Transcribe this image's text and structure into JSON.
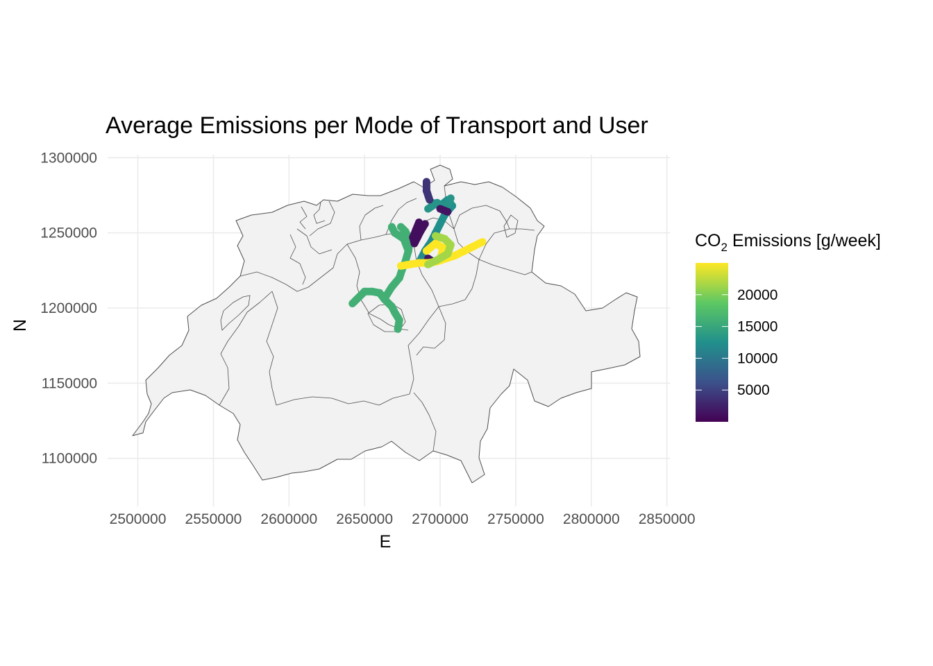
{
  "chart_data": {
    "type": "map",
    "title": "Average Emissions per Mode of Transport and User",
    "xlabel": "E",
    "ylabel": "N",
    "xlim": [
      2480000,
      2852000
    ],
    "ylim": [
      1068000,
      1302000
    ],
    "x_ticks": [
      2500000,
      2550000,
      2600000,
      2650000,
      2700000,
      2750000,
      2800000,
      2850000
    ],
    "y_ticks": [
      1100000,
      1150000,
      1200000,
      1250000,
      1300000
    ],
    "x_tick_labels": [
      "2500000",
      "2550000",
      "2600000",
      "2650000",
      "2700000",
      "2750000",
      "2800000",
      "2850000"
    ],
    "y_tick_labels": [
      "1100000",
      "1150000",
      "1200000",
      "1250000",
      "1300000"
    ],
    "grid": true,
    "basemap_fill": "#f2f2f2",
    "basemap_stroke": "#4d4d4d",
    "legend": {
      "title_main": "CO",
      "title_sub": "2",
      "title_rest": " Emissions [g/week]",
      "position": "right",
      "min": 0,
      "max": 25000,
      "ticks": [
        5000,
        10000,
        15000,
        20000
      ],
      "tick_labels": [
        "5000",
        "10000",
        "15000",
        "20000"
      ],
      "colormap": "viridis",
      "colors": [
        "#440154",
        "#3b528b",
        "#21908c",
        "#5dc863",
        "#fde725"
      ]
    },
    "tracks": [
      {
        "value": 16000,
        "points": [
          [
            2672000,
            1186000
          ],
          [
            2673000,
            1192000
          ],
          [
            2670000,
            1197000
          ],
          [
            2668000,
            1201000
          ],
          [
            2663000,
            1206000
          ],
          [
            2660000,
            1210000
          ],
          [
            2655000,
            1211000
          ],
          [
            2650000,
            1211000
          ],
          [
            2648000,
            1209000
          ],
          [
            2645000,
            1206000
          ],
          [
            2642000,
            1203000
          ]
        ]
      },
      {
        "value": 16000,
        "points": [
          [
            2663000,
            1206000
          ],
          [
            2668000,
            1214000
          ],
          [
            2673000,
            1220000
          ],
          [
            2675000,
            1226000
          ],
          [
            2677000,
            1231000
          ],
          [
            2679000,
            1238000
          ],
          [
            2680000,
            1245000
          ],
          [
            2677000,
            1251000
          ],
          [
            2674000,
            1254000
          ]
        ]
      },
      {
        "value": 16000,
        "points": [
          [
            2679000,
            1238000
          ],
          [
            2676000,
            1246000
          ],
          [
            2670000,
            1250000
          ],
          [
            2668000,
            1254000
          ]
        ]
      },
      {
        "value": 12500,
        "points": [
          [
            2695000,
            1270000
          ],
          [
            2700000,
            1268000
          ],
          [
            2705000,
            1272000
          ],
          [
            2708000,
            1268000
          ],
          [
            2703000,
            1262000
          ],
          [
            2700000,
            1256000
          ],
          [
            2697000,
            1250000
          ]
        ]
      },
      {
        "value": 12000,
        "points": [
          [
            2697000,
            1250000
          ],
          [
            2694000,
            1244000
          ],
          [
            2690000,
            1238000
          ],
          [
            2687000,
            1232000
          ]
        ]
      },
      {
        "value": 13000,
        "points": [
          [
            2692000,
            1266000
          ],
          [
            2698000,
            1270000
          ],
          [
            2704000,
            1266000
          ],
          [
            2707000,
            1273000
          ]
        ]
      },
      {
        "value": 1000,
        "points": [
          [
            2686000,
            1257000
          ],
          [
            2684000,
            1252000
          ],
          [
            2682000,
            1247000
          ],
          [
            2683000,
            1243000
          ],
          [
            2687000,
            1251000
          ],
          [
            2690000,
            1256000
          ]
        ]
      },
      {
        "value": 1500,
        "points": [
          [
            2700000,
            1266000
          ],
          [
            2705000,
            1264000
          ]
        ]
      },
      {
        "value": 1500,
        "points": [
          [
            2692000,
            1233000
          ],
          [
            2695000,
            1231000
          ]
        ]
      },
      {
        "value": 4000,
        "points": [
          [
            2691000,
            1284000
          ],
          [
            2691000,
            1278000
          ],
          [
            2693000,
            1272000
          ]
        ]
      },
      {
        "value": 25000,
        "points": [
          [
            2674000,
            1228000
          ],
          [
            2680000,
            1229000
          ],
          [
            2686000,
            1230000
          ],
          [
            2692000,
            1230000
          ],
          [
            2698000,
            1231000
          ],
          [
            2704000,
            1233000
          ],
          [
            2710000,
            1235000
          ],
          [
            2716000,
            1238000
          ],
          [
            2722000,
            1241000
          ],
          [
            2728000,
            1244000
          ]
        ]
      },
      {
        "value": 25000,
        "points": [
          [
            2691000,
            1238000
          ],
          [
            2697000,
            1243000
          ],
          [
            2702000,
            1240000
          ],
          [
            2700000,
            1232000
          ]
        ]
      },
      {
        "value": 21500,
        "points": [
          [
            2697000,
            1248000
          ],
          [
            2703000,
            1246000
          ],
          [
            2707000,
            1242000
          ],
          [
            2705000,
            1236000
          ],
          [
            2698000,
            1232000
          ],
          [
            2692000,
            1229000
          ]
        ]
      }
    ]
  }
}
